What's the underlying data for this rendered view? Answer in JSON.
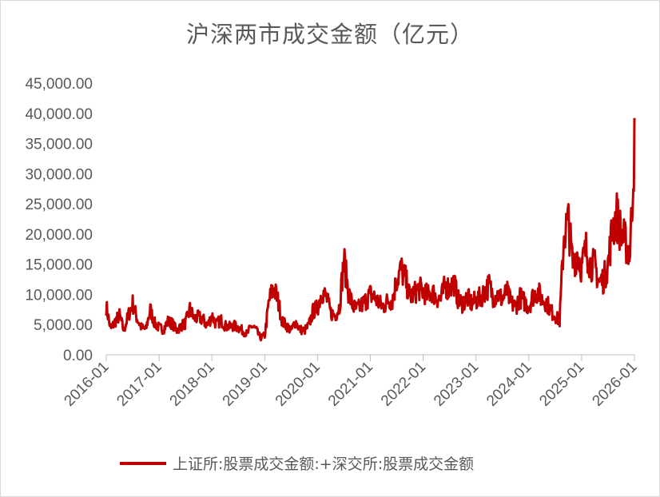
{
  "chart_data": {
    "type": "line",
    "title": "沪深两市成交金额（亿元）",
    "xlabel": "",
    "ylabel": "",
    "ylim": [
      0,
      45000
    ],
    "y_ticks": [
      "0.00",
      "5,000.00",
      "10,000.00",
      "15,000.00",
      "20,000.00",
      "25,000.00",
      "30,000.00",
      "35,000.00",
      "40,000.00",
      "45,000.00"
    ],
    "x_ticks": [
      "2016-01",
      "2017-01",
      "2018-01",
      "2019-01",
      "2020-01",
      "2021-01",
      "2022-01",
      "2023-01",
      "2024-01",
      "2025-01",
      "2026-01"
    ],
    "legend_position": "bottom",
    "grid": false,
    "line_color": "#c00000",
    "series": [
      {
        "name": "上证所:股票成交金额:+深交所:股票成交金额",
        "x": [
          "2016-01",
          "2016-02",
          "2016-03",
          "2016-04",
          "2016-05",
          "2016-06",
          "2016-07",
          "2016-08",
          "2016-09",
          "2016-10",
          "2016-11",
          "2016-12",
          "2017-01",
          "2017-02",
          "2017-03",
          "2017-04",
          "2017-05",
          "2017-06",
          "2017-07",
          "2017-08",
          "2017-09",
          "2017-10",
          "2017-11",
          "2017-12",
          "2018-01",
          "2018-02",
          "2018-03",
          "2018-04",
          "2018-05",
          "2018-06",
          "2018-07",
          "2018-08",
          "2018-09",
          "2018-10",
          "2018-11",
          "2018-12",
          "2019-01",
          "2019-02",
          "2019-03",
          "2019-04",
          "2019-05",
          "2019-06",
          "2019-07",
          "2019-08",
          "2019-09",
          "2019-10",
          "2019-11",
          "2019-12",
          "2020-01",
          "2020-02",
          "2020-03",
          "2020-04",
          "2020-05",
          "2020-06",
          "2020-07",
          "2020-08",
          "2020-09",
          "2020-10",
          "2020-11",
          "2020-12",
          "2021-01",
          "2021-02",
          "2021-03",
          "2021-04",
          "2021-05",
          "2021-06",
          "2021-07",
          "2021-08",
          "2021-09",
          "2021-10",
          "2021-11",
          "2021-12",
          "2022-01",
          "2022-02",
          "2022-03",
          "2022-04",
          "2022-05",
          "2022-06",
          "2022-07",
          "2022-08",
          "2022-09",
          "2022-10",
          "2022-11",
          "2022-12",
          "2023-01",
          "2023-02",
          "2023-03",
          "2023-04",
          "2023-05",
          "2023-06",
          "2023-07",
          "2023-08",
          "2023-09",
          "2023-10",
          "2023-11",
          "2023-12",
          "2024-01",
          "2024-02",
          "2024-03",
          "2024-04",
          "2024-05",
          "2024-06",
          "2024-07",
          "2024-08",
          "2024-09",
          "2024-10",
          "2024-11",
          "2024-12",
          "2025-01",
          "2025-02",
          "2025-03",
          "2025-04",
          "2025-05",
          "2025-06",
          "2025-07",
          "2025-08",
          "2025-09",
          "2025-10",
          "2025-11",
          "2025-12",
          "2026-01"
        ],
        "values": [
          8000,
          4200,
          5500,
          6500,
          4000,
          6500,
          8500,
          6000,
          4500,
          4200,
          7500,
          5200,
          4500,
          4200,
          5500,
          5200,
          4000,
          4800,
          5200,
          7500,
          6000,
          6200,
          5800,
          4800,
          6500,
          5000,
          5800,
          4800,
          4600,
          4800,
          4500,
          4000,
          3400,
          4800,
          4200,
          2800,
          3200,
          9000,
          11200,
          9000,
          5500,
          4800,
          4000,
          5500,
          4200,
          4000,
          4800,
          7200,
          7800,
          10500,
          9500,
          7000,
          6500,
          8000,
          15800,
          10500,
          8000,
          7500,
          8200,
          9000,
          10000,
          9500,
          8500,
          8000,
          9000,
          9000,
          12500,
          14200,
          12500,
          9500,
          10200,
          11000,
          10500,
          9800,
          10500,
          9500,
          9200,
          11500,
          11000,
          12000,
          9000,
          8500,
          9500,
          8500,
          9000,
          9500,
          10500,
          11500,
          9500,
          10000,
          9200,
          10500,
          8500,
          8000,
          9500,
          8800,
          8000,
          9800,
          10500,
          9200,
          8800,
          7200,
          6500,
          5500,
          20000,
          22000,
          15000,
          17000,
          14500,
          17500,
          15000,
          14800,
          12000,
          12500,
          15000,
          21000,
          23000,
          20000,
          18500,
          17000,
          35000
        ]
      }
    ]
  }
}
